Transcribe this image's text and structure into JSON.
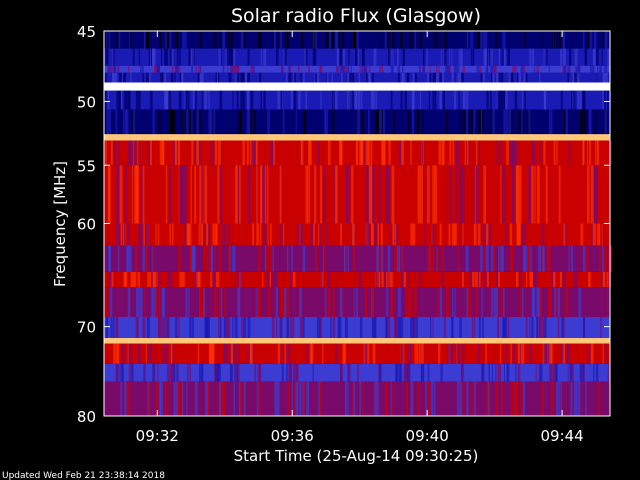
{
  "chart_data": {
    "type": "heatmap",
    "title": "Solar radio Flux (Glasgow)",
    "xlabel": "Start Time (25-Aug-14 09:30:25)",
    "ylabel": "Frequency [MHz]",
    "x_tick_labels": [
      "09:32",
      "09:36",
      "09:40",
      "09:44"
    ],
    "x_ticks_minutes_from_start": [
      1.58,
      5.58,
      9.58,
      13.58
    ],
    "xlim_minutes": [
      0,
      15
    ],
    "y_tick_labels": [
      "45",
      "50",
      "55",
      "60",
      "70",
      "80"
    ],
    "y_ticks": [
      45,
      50,
      55,
      60,
      70,
      80
    ],
    "ylim": [
      45,
      80
    ],
    "y_scale": "log",
    "y_inverted": true,
    "colormap": [
      "#000000",
      "#00006e",
      "#1a1ab4",
      "#3c3cd2",
      "#7a0a6a",
      "#c80000",
      "#ff3000",
      "#ff7800",
      "#ffc878",
      "#ffffff"
    ],
    "bands": [
      {
        "from": 45.0,
        "to": 46.2,
        "level": 1
      },
      {
        "from": 46.2,
        "to": 47.4,
        "level": 2
      },
      {
        "from": 47.4,
        "to": 47.9,
        "level": 3
      },
      {
        "from": 47.9,
        "to": 48.6,
        "level": 2
      },
      {
        "from": 48.6,
        "to": 49.2,
        "level": 9
      },
      {
        "from": 49.2,
        "to": 50.6,
        "level": 2
      },
      {
        "from": 50.6,
        "to": 52.5,
        "level": 1
      },
      {
        "from": 52.5,
        "to": 53.0,
        "level": 8
      },
      {
        "from": 53.0,
        "to": 55.0,
        "level": 5
      },
      {
        "from": 55.0,
        "to": 60.0,
        "level": 5
      },
      {
        "from": 60.0,
        "to": 62.0,
        "level": 5
      },
      {
        "from": 62.0,
        "to": 64.5,
        "level": 4
      },
      {
        "from": 64.5,
        "to": 66.0,
        "level": 5
      },
      {
        "from": 66.0,
        "to": 69.0,
        "level": 4
      },
      {
        "from": 69.0,
        "to": 71.2,
        "level": 3
      },
      {
        "from": 71.2,
        "to": 71.8,
        "level": 8
      },
      {
        "from": 71.8,
        "to": 74.0,
        "level": 5
      },
      {
        "from": 74.0,
        "to": 76.0,
        "level": 3
      },
      {
        "from": 76.0,
        "to": 80.0,
        "level": 4
      }
    ],
    "grid": false,
    "footer": "Updated Wed Feb 21 23:38:14 2018"
  }
}
